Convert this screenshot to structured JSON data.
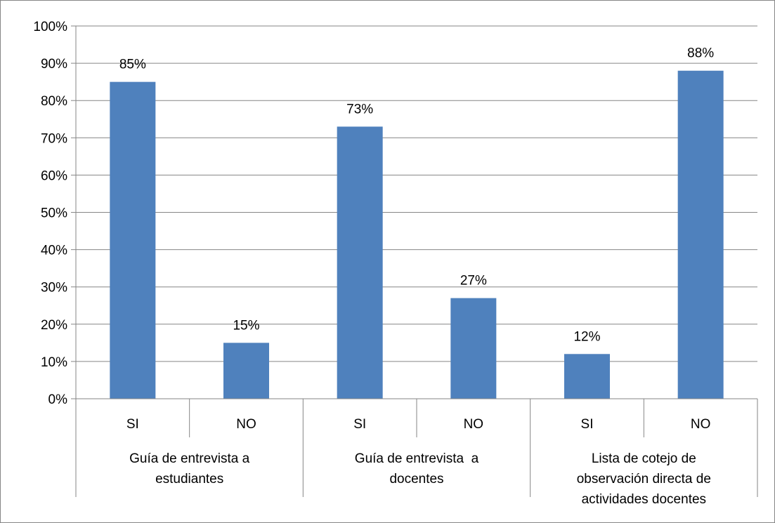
{
  "chart_data": {
    "type": "bar",
    "title": "",
    "xlabel": "",
    "ylabel": "",
    "ylim": [
      0,
      1
    ],
    "yticks": [
      "0%",
      "10%",
      "20%",
      "30%",
      "40%",
      "50%",
      "60%",
      "70%",
      "80%",
      "90%",
      "100%"
    ],
    "grid": true,
    "bar_color": "#4F81BD",
    "groups": [
      {
        "label_lines": [
          "Guía de entrevista a",
          "estudiantes"
        ],
        "categories": [
          "SI",
          "NO"
        ]
      },
      {
        "label_lines": [
          "Guía de entrevista  a",
          "docentes"
        ],
        "categories": [
          "SI",
          "NO"
        ]
      },
      {
        "label_lines": [
          "Lista de cotejo de",
          "observación directa de",
          "actividades docentes"
        ],
        "categories": [
          "SI",
          "NO"
        ]
      }
    ],
    "categories": [
      "SI",
      "NO",
      "SI",
      "NO",
      "SI",
      "NO"
    ],
    "values": [
      0.85,
      0.15,
      0.73,
      0.27,
      0.12,
      0.88
    ],
    "data_labels": [
      "85%",
      "15%",
      "73%",
      "27%",
      "12%",
      "88%"
    ]
  }
}
